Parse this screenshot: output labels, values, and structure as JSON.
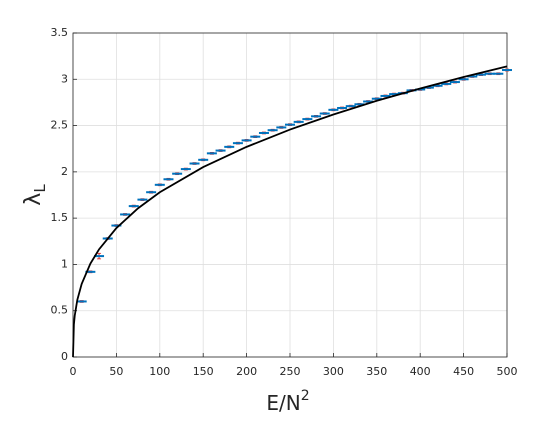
{
  "chart_data": {
    "type": "errorbar",
    "xlabel": {
      "text": "E/N",
      "superscript": "2"
    },
    "ylabel": {
      "text": "λ",
      "subscript": "L"
    },
    "xlim": [
      0,
      500
    ],
    "ylim": [
      0,
      3.5
    ],
    "xticks": [
      0,
      50,
      100,
      150,
      200,
      250,
      300,
      350,
      400,
      450,
      500
    ],
    "yticks": [
      0,
      0.5,
      1,
      1.5,
      2,
      2.5,
      3,
      3.5
    ],
    "grid": true,
    "series": [
      {
        "type": "errorbar",
        "color": "#0072bd",
        "error_color": "#d62020",
        "x": [
          10,
          20,
          30,
          40,
          50,
          60,
          70,
          80,
          90,
          100,
          110,
          120,
          130,
          140,
          150,
          160,
          170,
          180,
          190,
          200,
          210,
          220,
          230,
          240,
          250,
          260,
          270,
          280,
          290,
          300,
          310,
          320,
          330,
          340,
          350,
          360,
          370,
          380,
          390,
          400,
          410,
          420,
          430,
          440,
          450,
          460,
          470,
          480,
          490,
          500
        ],
        "values": [
          0.6,
          0.92,
          1.09,
          1.28,
          1.42,
          1.54,
          1.63,
          1.7,
          1.78,
          1.86,
          1.92,
          1.98,
          2.03,
          2.09,
          2.13,
          2.2,
          2.23,
          2.27,
          2.31,
          2.34,
          2.38,
          2.42,
          2.45,
          2.48,
          2.51,
          2.54,
          2.57,
          2.6,
          2.63,
          2.67,
          2.69,
          2.71,
          2.73,
          2.76,
          2.79,
          2.82,
          2.84,
          2.85,
          2.88,
          2.89,
          2.91,
          2.93,
          2.95,
          2.97,
          3.0,
          3.03,
          3.05,
          3.06,
          3.06,
          3.1
        ],
        "errors": [
          0.01,
          0.01,
          0.03,
          0.01,
          0.01,
          0.01,
          0.01,
          0.01,
          0.01,
          0.01,
          0.01,
          0.01,
          0.01,
          0.01,
          0.01,
          0.01,
          0.01,
          0.01,
          0.01,
          0.01,
          0.01,
          0.01,
          0.01,
          0.01,
          0.01,
          0.01,
          0.01,
          0.01,
          0.01,
          0.01,
          0.01,
          0.01,
          0.01,
          0.01,
          0.01,
          0.01,
          0.01,
          0.01,
          0.01,
          0.01,
          0.01,
          0.01,
          0.01,
          0.01,
          0.01,
          0.01,
          0.01,
          0.01,
          0.01,
          0.01
        ]
      },
      {
        "type": "line",
        "color": "#000000",
        "x": [
          0,
          1,
          2,
          5,
          10,
          20,
          30,
          50,
          75,
          100,
          150,
          200,
          250,
          300,
          350,
          400,
          450,
          500
        ],
        "values": [
          0,
          0.35,
          0.447,
          0.618,
          0.79,
          1.008,
          1.163,
          1.393,
          1.607,
          1.78,
          2.052,
          2.27,
          2.457,
          2.62,
          2.768,
          2.9,
          3.025,
          3.14
        ]
      }
    ]
  }
}
